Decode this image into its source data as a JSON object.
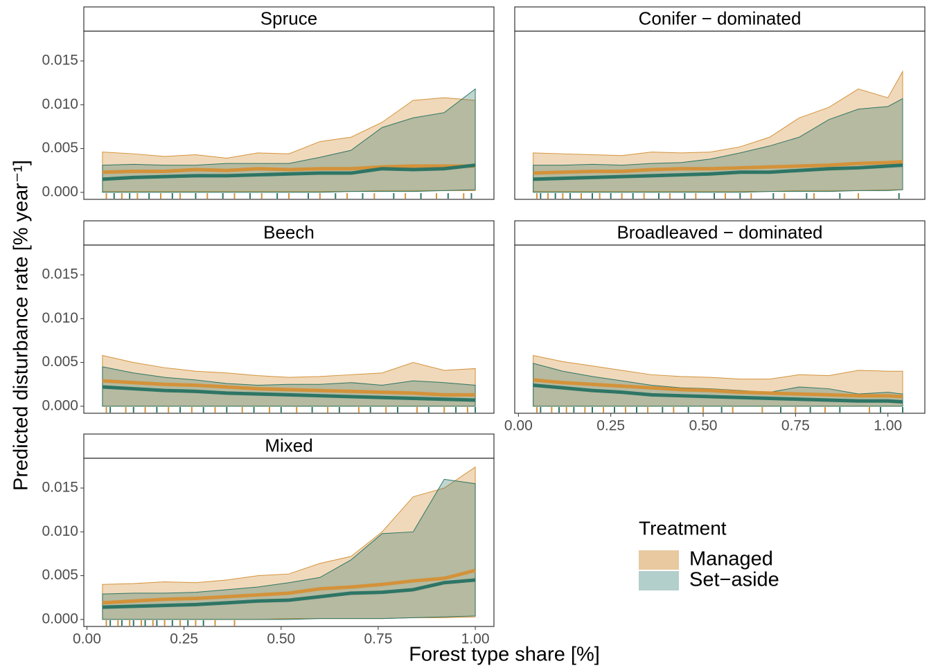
{
  "chart_data": [
    {
      "type": "band",
      "title": "Spruce",
      "x": [
        0.04,
        0.12,
        0.2,
        0.28,
        0.36,
        0.44,
        0.52,
        0.6,
        0.68,
        0.76,
        0.84,
        0.92,
        1.0
      ],
      "xlim": [
        -0.008,
        1.048
      ],
      "ylim": [
        -0.0008,
        0.0184
      ],
      "yticks": [
        {
          "value": 0,
          "label": "0.000"
        },
        0.005,
        {
          "value": 0.01,
          "label": "0.010"
        },
        0.015
      ],
      "series": [
        {
          "name": "Managed",
          "color": "#d4923a",
          "fill": "#e8c9a0",
          "values": [
            0.0023,
            0.0024,
            0.0024,
            0.0026,
            0.0025,
            0.0027,
            0.0026,
            0.0027,
            0.0027,
            0.0029,
            0.003,
            0.003,
            0.003
          ],
          "lower": [
            0.0001,
            0.0001,
            0.0001,
            0.0001,
            0.0001,
            0.0001,
            0.0001,
            0.0001,
            0.0001,
            0.0002,
            0.0002,
            0.0002,
            0.0002
          ],
          "upper": [
            0.0046,
            0.0044,
            0.0041,
            0.0043,
            0.0039,
            0.0045,
            0.0044,
            0.0058,
            0.0063,
            0.008,
            0.0105,
            0.0108,
            0.0105
          ],
          "rug": [
            0.05,
            0.09,
            0.13,
            0.19,
            0.24,
            0.31,
            0.38,
            0.45,
            0.52,
            0.6,
            0.67,
            0.74,
            0.82,
            0.9,
            0.97
          ]
        },
        {
          "name": "Set-aside",
          "color": "#2e7565",
          "fill": "#7fb0a8",
          "values": [
            0.0015,
            0.0017,
            0.0018,
            0.0019,
            0.0019,
            0.002,
            0.0021,
            0.0022,
            0.0022,
            0.0027,
            0.0026,
            0.0027,
            0.0031
          ],
          "lower": [
            0,
            0,
            0,
            0,
            0,
            0,
            0,
            0,
            0.0001,
            0.0001,
            0.0001,
            0.0002,
            0.0003
          ],
          "upper": [
            0.0031,
            0.0032,
            0.0031,
            0.0031,
            0.0033,
            0.0033,
            0.0033,
            0.004,
            0.0048,
            0.0074,
            0.0085,
            0.0091,
            0.0118
          ],
          "rug": [
            0.07,
            0.11,
            0.16,
            0.22,
            0.28,
            0.35,
            0.42,
            0.49,
            0.57,
            0.64,
            0.71,
            0.79,
            0.86,
            0.93,
            0.99
          ]
        }
      ]
    },
    {
      "type": "band",
      "title": "Conifer − dominated",
      "x": [
        0.04,
        0.12,
        0.2,
        0.28,
        0.36,
        0.44,
        0.52,
        0.6,
        0.68,
        0.76,
        0.84,
        0.92,
        1.0,
        1.04
      ],
      "xlim": [
        -0.01,
        1.1
      ],
      "ylim": [
        -0.0008,
        0.0184
      ],
      "series": [
        {
          "name": "Managed",
          "color": "#d4923a",
          "fill": "#e8c9a0",
          "values": [
            0.0022,
            0.0023,
            0.0024,
            0.0024,
            0.0026,
            0.0027,
            0.0027,
            0.0028,
            0.0029,
            0.003,
            0.0031,
            0.0033,
            0.0034,
            0.0035
          ],
          "lower": [
            0.0001,
            0.0001,
            0.0001,
            0.0001,
            0.0001,
            0.0001,
            0.0001,
            0.0001,
            0.0001,
            0.0002,
            0.0002,
            0.0002,
            0.0003,
            0.0003
          ],
          "upper": [
            0.0045,
            0.0044,
            0.0043,
            0.0042,
            0.0046,
            0.0045,
            0.0046,
            0.0052,
            0.0063,
            0.0085,
            0.0097,
            0.0118,
            0.0108,
            0.0138
          ],
          "rug": [
            0.05,
            0.08,
            0.12,
            0.17,
            0.22,
            0.28,
            0.34,
            0.41,
            0.48,
            0.56,
            0.63,
            0.72,
            0.8,
            0.92
          ]
        },
        {
          "name": "Set-aside",
          "color": "#2e7565",
          "fill": "#7fb0a8",
          "values": [
            0.0015,
            0.0016,
            0.0017,
            0.0018,
            0.0019,
            0.002,
            0.0021,
            0.0023,
            0.0023,
            0.0025,
            0.0027,
            0.0028,
            0.003,
            0.0031
          ],
          "lower": [
            0,
            0,
            0,
            0,
            0,
            0,
            0,
            0,
            0.0001,
            0.0001,
            0.0001,
            0.0002,
            0.0002,
            0.0003
          ],
          "upper": [
            0.0031,
            0.0031,
            0.0032,
            0.0031,
            0.0033,
            0.0034,
            0.0038,
            0.0045,
            0.0053,
            0.0063,
            0.0083,
            0.0095,
            0.0098,
            0.0107
          ],
          "rug": [
            0.06,
            0.1,
            0.14,
            0.2,
            0.25,
            0.31,
            0.38,
            0.45,
            0.53,
            0.6,
            0.69,
            0.78,
            0.87,
            1.03
          ]
        }
      ]
    },
    {
      "type": "band",
      "title": "Beech",
      "x": [
        0.04,
        0.12,
        0.2,
        0.28,
        0.36,
        0.44,
        0.52,
        0.6,
        0.68,
        0.76,
        0.84,
        0.92,
        1.0
      ],
      "xlim": [
        -0.008,
        1.048
      ],
      "ylim": [
        -0.0008,
        0.0184
      ],
      "yticks": [
        {
          "value": 0,
          "label": "0.000"
        },
        0.005,
        {
          "value": 0.01,
          "label": "0.010"
        },
        0.015
      ],
      "series": [
        {
          "name": "Managed",
          "color": "#d4923a",
          "fill": "#e8c9a0",
          "values": [
            0.0029,
            0.0027,
            0.0025,
            0.0024,
            0.0022,
            0.002,
            0.0019,
            0.0018,
            0.0017,
            0.0016,
            0.0015,
            0.0013,
            0.0013
          ],
          "lower": [
            0,
            0,
            0,
            0,
            0,
            0,
            0,
            0,
            0,
            0,
            0,
            0,
            0
          ],
          "upper": [
            0.0058,
            0.005,
            0.0044,
            0.004,
            0.0038,
            0.0035,
            0.0033,
            0.0034,
            0.0036,
            0.0038,
            0.005,
            0.0041,
            0.0043
          ],
          "rug": [
            0.05,
            0.1,
            0.15,
            0.21,
            0.27,
            0.33,
            0.4,
            0.47,
            0.54,
            0.62,
            0.7,
            0.77,
            0.85,
            0.92,
            0.98
          ]
        },
        {
          "name": "Set-aside",
          "color": "#2e7565",
          "fill": "#7fb0a8",
          "values": [
            0.0022,
            0.002,
            0.0018,
            0.0017,
            0.0015,
            0.0014,
            0.0013,
            0.0012,
            0.0011,
            0.001,
            0.0009,
            0.0008,
            0.0007
          ],
          "lower": [
            0,
            0,
            0,
            0,
            0,
            0,
            0,
            0,
            0,
            0,
            0,
            0,
            0
          ],
          "upper": [
            0.0045,
            0.0038,
            0.0033,
            0.003,
            0.0026,
            0.0024,
            0.0025,
            0.0025,
            0.0027,
            0.0024,
            0.0029,
            0.0027,
            0.0024
          ],
          "rug": [
            0.06,
            0.12,
            0.18,
            0.24,
            0.3,
            0.36,
            0.43,
            0.5,
            0.58,
            0.65,
            0.73,
            0.8,
            0.88,
            0.95,
            1.0
          ]
        }
      ]
    },
    {
      "type": "band",
      "title": "Broadleaved − dominated",
      "x": [
        0.04,
        0.12,
        0.2,
        0.28,
        0.36,
        0.44,
        0.52,
        0.6,
        0.68,
        0.76,
        0.84,
        0.92,
        1.0,
        1.04
      ],
      "xlim": [
        -0.01,
        1.1
      ],
      "ylim": [
        -0.0008,
        0.0184
      ],
      "xticks": [
        {
          "value": 0,
          "label": "0.00"
        },
        0.25,
        {
          "value": 0.5,
          "label": "0.50"
        },
        0.75,
        {
          "value": 1,
          "label": "1.00"
        }
      ],
      "series": [
        {
          "name": "Managed",
          "color": "#d4923a",
          "fill": "#e8c9a0",
          "values": [
            0.003,
            0.0027,
            0.0025,
            0.0023,
            0.0021,
            0.0019,
            0.0018,
            0.0016,
            0.0015,
            0.0014,
            0.0013,
            0.0012,
            0.0012,
            0.0011
          ],
          "lower": [
            0,
            0,
            0,
            0,
            0,
            0,
            0,
            0,
            0,
            0,
            0,
            0,
            0,
            0
          ],
          "upper": [
            0.0058,
            0.0051,
            0.0046,
            0.0041,
            0.0036,
            0.0034,
            0.0033,
            0.0031,
            0.0031,
            0.0036,
            0.0035,
            0.0041,
            0.004,
            0.004
          ],
          "rug": [
            0.05,
            0.09,
            0.13,
            0.18,
            0.23,
            0.29,
            0.35,
            0.42,
            0.5,
            0.58,
            0.66,
            0.75,
            0.83,
            0.95
          ]
        },
        {
          "name": "Set-aside",
          "color": "#2e7565",
          "fill": "#7fb0a8",
          "values": [
            0.0024,
            0.0021,
            0.0018,
            0.0016,
            0.0013,
            0.0012,
            0.0011,
            0.001,
            0.0009,
            0.0008,
            0.0007,
            0.0006,
            0.0006,
            0.0005
          ],
          "lower": [
            0,
            0,
            0,
            0,
            0,
            0,
            0,
            0,
            0,
            0,
            0,
            0,
            0,
            0
          ],
          "upper": [
            0.0049,
            0.004,
            0.0034,
            0.0029,
            0.0024,
            0.0021,
            0.002,
            0.0018,
            0.0016,
            0.0022,
            0.002,
            0.0014,
            0.0016,
            0.0014
          ],
          "rug": [
            0.06,
            0.11,
            0.15,
            0.2,
            0.26,
            0.32,
            0.39,
            0.46,
            0.55,
            0.71,
            0.79,
            0.87,
            0.98,
            1.04
          ]
        }
      ]
    },
    {
      "type": "band",
      "title": "Mixed",
      "x": [
        0.04,
        0.12,
        0.2,
        0.28,
        0.36,
        0.44,
        0.52,
        0.6,
        0.68,
        0.76,
        0.84,
        0.92,
        1.0
      ],
      "xlim": [
        -0.008,
        1.048
      ],
      "ylim": [
        -0.0008,
        0.0184
      ],
      "xticks": [
        {
          "value": 0,
          "label": "0.00"
        },
        0.25,
        {
          "value": 0.5,
          "label": "0.50"
        },
        0.75,
        {
          "value": 1,
          "label": "1.00"
        }
      ],
      "yticks": [
        {
          "value": 0,
          "label": "0.000"
        },
        0.005,
        {
          "value": 0.01,
          "label": "0.010"
        },
        0.015
      ],
      "series": [
        {
          "name": "Managed",
          "color": "#d4923a",
          "fill": "#e8c9a0",
          "values": [
            0.0019,
            0.0021,
            0.0023,
            0.0024,
            0.0026,
            0.0028,
            0.003,
            0.0035,
            0.0037,
            0.004,
            0.0044,
            0.0047,
            0.0056
          ],
          "lower": [
            0,
            0,
            0,
            0,
            0,
            0,
            0.0001,
            0.0001,
            0.0001,
            0.0001,
            0.0002,
            0.0002,
            0.0003
          ],
          "upper": [
            0.004,
            0.0041,
            0.0043,
            0.0042,
            0.0045,
            0.005,
            0.0052,
            0.0064,
            0.0072,
            0.01,
            0.014,
            0.015,
            0.0174
          ],
          "rug": [
            0.05,
            0.08,
            0.11,
            0.14,
            0.17,
            0.2,
            0.24,
            0.28,
            0.33,
            0.38
          ]
        },
        {
          "name": "Set-aside",
          "color": "#2e7565",
          "fill": "#7fb0a8",
          "values": [
            0.0014,
            0.0015,
            0.0016,
            0.0017,
            0.0019,
            0.0021,
            0.0022,
            0.0026,
            0.003,
            0.0031,
            0.0034,
            0.0042,
            0.0045
          ],
          "lower": [
            0,
            0,
            0,
            0,
            0,
            0,
            0,
            0.0001,
            0.0001,
            0.0001,
            0.0002,
            0.0003,
            0.0004
          ],
          "upper": [
            0.0029,
            0.003,
            0.003,
            0.0031,
            0.0034,
            0.0037,
            0.0042,
            0.0048,
            0.0068,
            0.0098,
            0.01,
            0.016,
            0.0155
          ],
          "rug": [
            0.06,
            0.09,
            0.12,
            0.15,
            0.18,
            0.22,
            0.26,
            0.3
          ]
        }
      ]
    }
  ],
  "x_label": "Forest type share [%]",
  "y_label": "Predicted disturbance rate [% year⁻¹]",
  "legend": {
    "title": "Treatment",
    "entries": [
      {
        "name": "Managed",
        "fill": "#e8c9a0"
      },
      {
        "name": "Set−aside",
        "fill": "#b3cfcb"
      }
    ]
  }
}
